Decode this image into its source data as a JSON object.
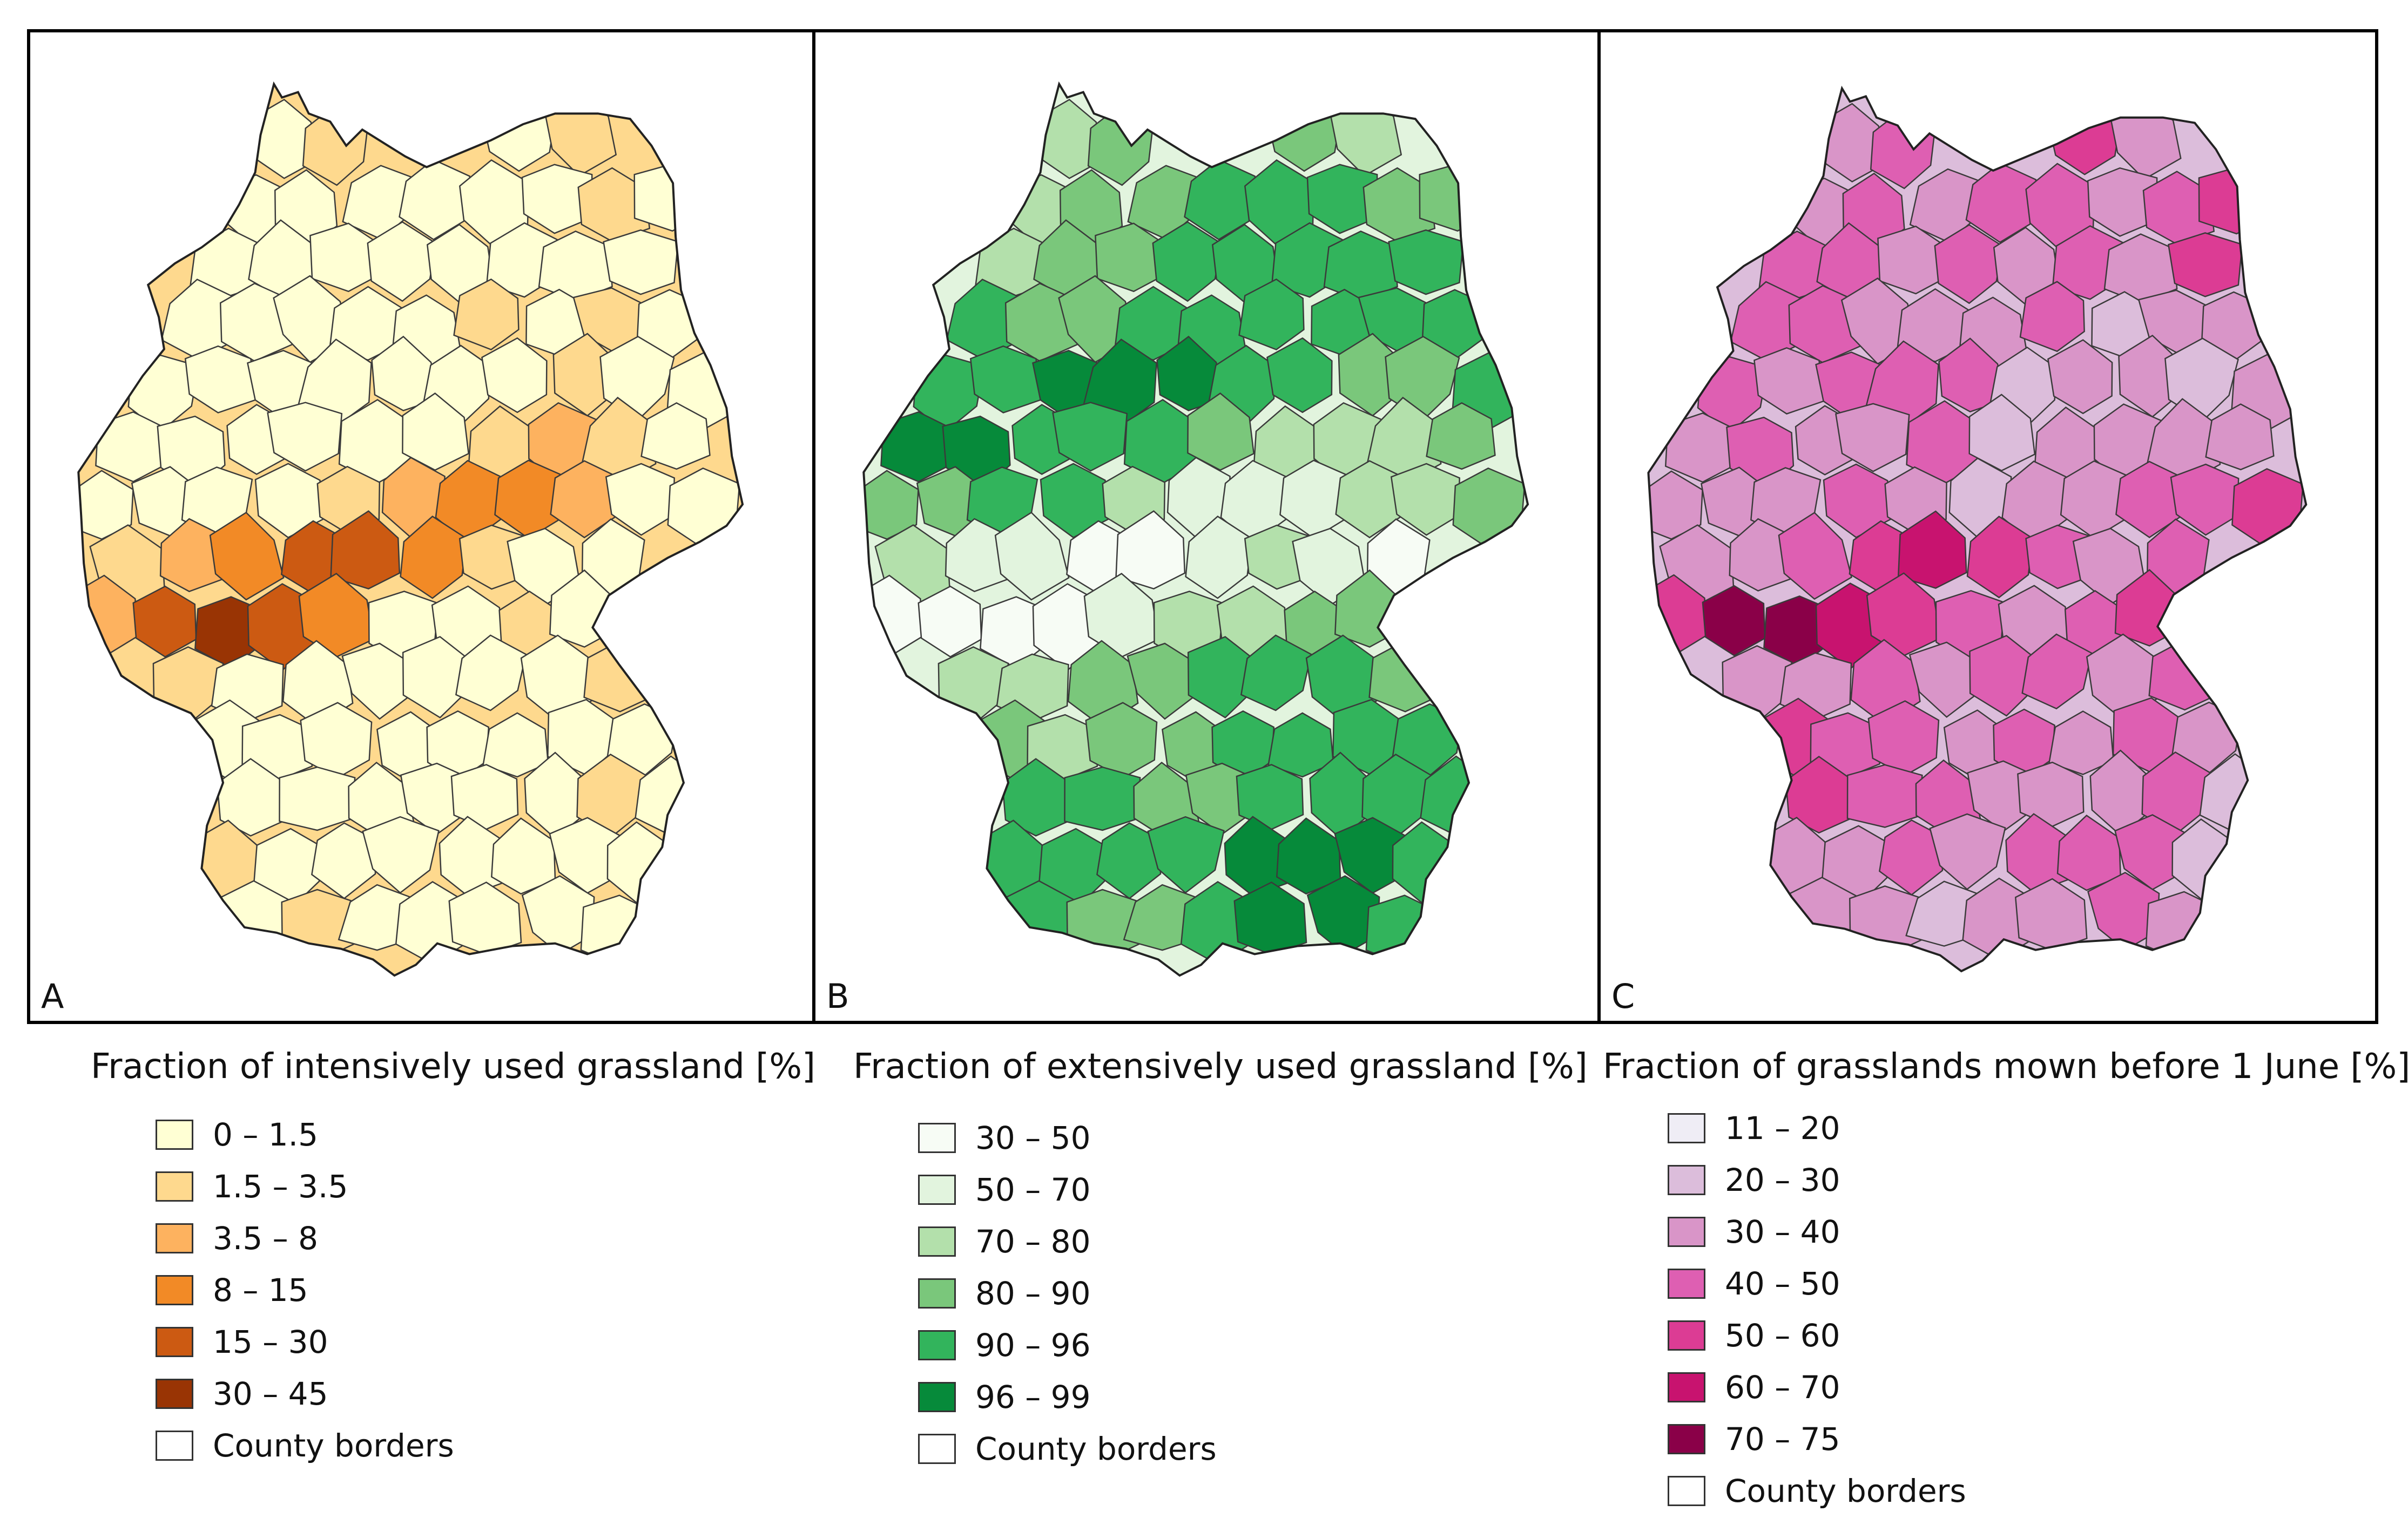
{
  "panels": [
    {
      "letter": "A",
      "title": "Fraction of intensively used grassland [%]",
      "classes": [
        {
          "label": "0 – 1.5",
          "color": "#ffffd4"
        },
        {
          "label": "1.5 – 3.5",
          "color": "#fed98e"
        },
        {
          "label": "3.5 – 8",
          "color": "#fdb25f"
        },
        {
          "label": "8 – 15",
          "color": "#f28a26"
        },
        {
          "label": "15 – 30",
          "color": "#cc5a12"
        },
        {
          "label": "30 – 45",
          "color": "#993404"
        }
      ],
      "border_label": "County borders",
      "border_color": "#ffffff"
    },
    {
      "letter": "B",
      "title": "Fraction of extensively used grassland [%]",
      "classes": [
        {
          "label": "30 – 50",
          "color": "#f7fcf5"
        },
        {
          "label": "50 – 70",
          "color": "#e2f4de"
        },
        {
          "label": "70 – 80",
          "color": "#b3e0ab"
        },
        {
          "label": "80 – 90",
          "color": "#7ac77b"
        },
        {
          "label": "90 – 96",
          "color": "#32b45c"
        },
        {
          "label": "96 – 99",
          "color": "#068a3a"
        }
      ],
      "border_label": "County borders",
      "border_color": "#ffffff"
    },
    {
      "letter": "C",
      "title": "Fraction of grasslands mown before 1 June [%]",
      "classes": [
        {
          "label": "11 – 20",
          "color": "#efedf5"
        },
        {
          "label": "20 – 30",
          "color": "#dcbddb"
        },
        {
          "label": "30 – 40",
          "color": "#d995c8"
        },
        {
          "label": "40 – 50",
          "color": "#de5fb2"
        },
        {
          "label": "50 – 60",
          "color": "#dc3c94"
        },
        {
          "label": "60 – 70",
          "color": "#c8136f"
        },
        {
          "label": "70 – 75",
          "color": "#8a0048"
        }
      ],
      "border_label": "County borders",
      "border_color": "#ffffff"
    }
  ],
  "region_classes": [
    [
      0,
      1,
      0,
      1,
      0,
      0,
      0,
      0,
      0,
      0,
      1,
      0,
      0,
      0,
      0,
      0,
      0,
      0,
      0,
      0,
      0,
      0,
      0,
      0,
      0,
      1,
      0,
      1,
      0,
      0,
      0,
      0,
      0,
      0,
      0,
      0,
      1,
      0,
      0,
      0,
      0,
      0,
      0,
      0,
      0,
      1,
      2,
      1,
      0,
      0,
      0,
      0,
      0,
      1,
      2,
      3,
      3,
      2,
      0,
      0,
      1,
      2,
      3,
      4,
      4,
      3,
      1,
      0,
      0,
      2,
      4,
      5,
      4,
      3,
      0
    ],
    [
      2,
      3,
      3,
      2,
      2,
      3,
      3,
      4,
      4,
      4,
      3,
      3,
      2,
      3,
      3,
      4,
      4,
      4,
      4,
      4,
      4,
      3,
      3,
      4,
      4,
      4,
      4,
      4,
      4,
      4,
      4,
      5,
      5,
      5,
      4,
      4,
      3,
      3,
      4,
      5,
      5,
      4,
      4,
      4,
      3,
      2,
      2,
      2,
      3,
      3,
      3,
      4,
      4,
      2,
      1,
      1,
      1,
      2,
      2,
      3,
      2,
      1,
      1,
      0,
      0,
      1,
      2,
      1,
      0,
      0,
      0,
      0,
      0,
      1,
      2
    ],
    [
      2,
      3,
      4,
      2,
      2,
      3,
      2,
      3,
      3,
      2,
      3,
      4,
      3,
      3,
      2,
      3,
      2,
      3,
      2,
      4,
      3,
      3,
      2,
      2,
      2,
      3,
      1,
      2,
      2,
      3,
      2,
      3,
      3,
      3,
      1,
      2,
      2,
      1,
      2,
      2,
      3,
      2,
      2,
      3,
      1,
      2,
      2,
      2,
      2,
      2,
      2,
      2,
      3,
      2,
      1,
      2,
      2,
      3,
      3,
      4,
      2,
      2,
      3,
      4,
      5,
      4,
      3,
      2,
      3,
      4,
      6,
      6,
      5,
      4,
      3
    ]
  ]
}
